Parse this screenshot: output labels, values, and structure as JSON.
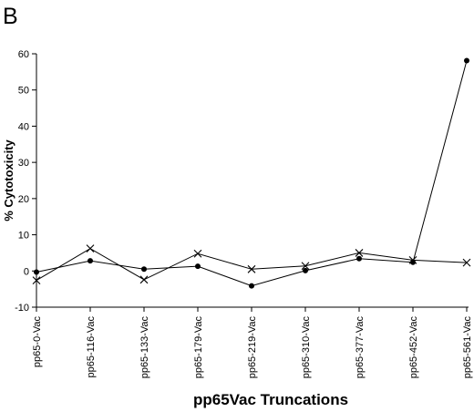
{
  "panel_label": "B",
  "chart_data": {
    "type": "line",
    "categories": [
      "pp65-0-Vac",
      "pp65-116-Vac",
      "pp65-133-Vac",
      "pp65-179-Vac",
      "pp65-219-Vac",
      "pp65-310-Vac",
      "pp65-377-Vac",
      "pp65-452-Vac",
      "pp65-561-Vac"
    ],
    "series": [
      {
        "marker": "filled-circle",
        "values": [
          -0.3,
          2.8,
          0.5,
          1.3,
          -4.1,
          0.1,
          3.4,
          2.4,
          58.1
        ]
      },
      {
        "marker": "cross",
        "values": [
          -2.6,
          6.2,
          -2.4,
          4.8,
          0.5,
          1.4,
          5.0,
          3.0,
          2.3
        ]
      }
    ],
    "xlabel": "pp65Vac Truncations",
    "ylabel": "% Cytotoxicity",
    "ylim": [
      -10,
      60
    ],
    "yticks": [
      -10,
      0,
      10,
      20,
      30,
      40,
      50,
      60
    ],
    "grid": false,
    "legend": "none"
  }
}
